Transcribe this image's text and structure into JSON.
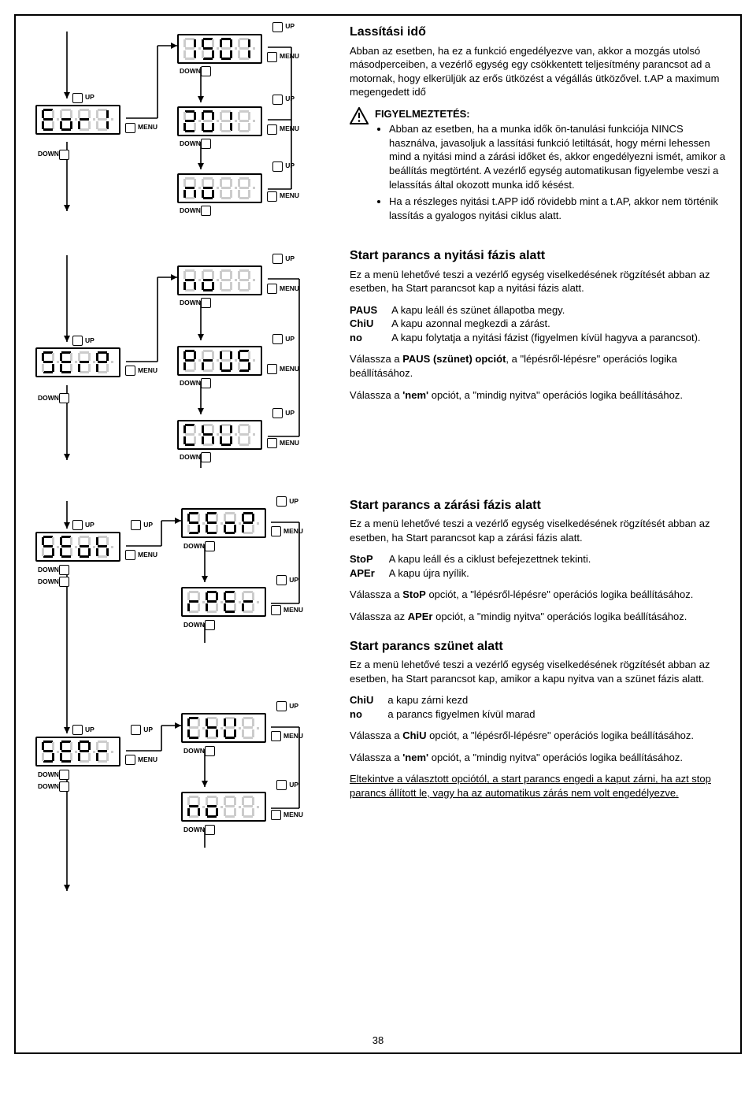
{
  "labels": {
    "up": "UP",
    "down": "DOWN",
    "menu": "MENU"
  },
  "section1": {
    "display_main": "E.o.R.1",
    "displays_right_top": "1.5.0.1",
    "displays_right_mid": "2.0.1",
    "displays_right_bot": "n.o",
    "title": "Lassítási idő",
    "para1": "Abban az esetben, ha ez a funkció engedélyezve van, akkor a mozgás utolsó másodperceiben, a vezérlő egység egy csökkentett teljesítmény parancsot ad a motornak, hogy elkerüljük az erős ütközést a végállás ütközővel. t.AP a maximum megengedett idő",
    "warn_title": "FIGYELMEZTETÉS:",
    "warn_items": [
      "Abban az esetben, ha a munka idők ön-tanulási funkciója NINCS használva, javasoljuk a lassítási funkció letiltását, hogy mérni lehessen mind a nyitási mind a zárási időket és, akkor engedélyezni ismét, amikor a beállítás megtörtént. A vezérlő egység automatikusan figyelembe veszi a lelassítás által okozott munka idő késést.",
      "Ha a részleges nyitási t.APP idő rövidebb mint a t.AP, akkor nem történik lassítás a gyalogos nyitási ciklus alatt."
    ]
  },
  "section2": {
    "display_main": "S.E.R.P",
    "displays_right_top": "n.o",
    "displays_right_mid": "P.R.U.S",
    "displays_right_bot": "C.h.U",
    "title": "Start parancs a nyitási fázis alatt",
    "intro": "Ez a menü lehetővé teszi a vezérlő egység viselkedésének rögzítését abban az esetben, ha Start parancsot kap a nyitási fázis alatt.",
    "defs": [
      {
        "k": "PAUS",
        "v": "A kapu leáll és szünet állapotba megy."
      },
      {
        "k": "ChiU",
        "v": "A kapu azonnal megkezdi a zárást."
      },
      {
        "k": "no",
        "v": "A kapu folytatja a nyitási fázist (figyelmen kívül hagyva a parancsot)."
      }
    ],
    "note1": "Válassza a <b>PAUS (szünet) opciót</b>, a \"lépésről-lépésre\" operációs logika beállításához.",
    "note2": "Válassza a <b>'nem'</b> opciót, a \"mindig nyitva\" operációs logika beállításához."
  },
  "section3": {
    "title": "Start parancs a zárási fázis alatt",
    "display_left_top": "S.E.o.h",
    "display_right_top": "S.E.o.P",
    "display_right_mid": "R.P.E.r",
    "intro": "Ez a menü lehetővé teszi a vezérlő egység viselkedésének rögzítését abban az esetben, ha Start parancsot kap a zárási fázis alatt.",
    "defs": [
      {
        "k": "StoP",
        "v": "A kapu leáll és a ciklust befejezettnek tekinti."
      },
      {
        "k": "APEr",
        "v": "A kapu újra nyílik."
      }
    ],
    "note1": "Válassza a <b>StoP</b> opciót, a \"lépésről-lépésre\" operációs logika beállításához.",
    "note2": "Válassza az <b>APEr</b> opciót, a \"mindig nyitva\" operációs logika beállításához."
  },
  "section4": {
    "title": "Start parancs szünet alatt",
    "display_left": "S.E.P.R",
    "display_right_top": "C.h.U",
    "display_right_mid": "n.o",
    "intro": "Ez a menü lehetővé teszi a vezérlő egység viselkedésének rögzítését abban az esetben, ha Start parancsot kap, amikor a kapu nyitva van a szünet fázis alatt.",
    "defs": [
      {
        "k": "ChiU",
        "v": "a kapu zárni kezd"
      },
      {
        "k": "no",
        "v": "a parancs figyelmen kívül marad"
      }
    ],
    "note1": "Válassza a <b>ChiU</b> opciót, a \"lépésről-lépésre\" operációs logika beállításához.",
    "note2": "Válassza a <b>'nem'</b> opciót, a \"mindig nyitva\" operációs logika beállításához.",
    "footer": "Eltekintve a választott opciótól, a start parancs engedi a kaput zárni, ha azt stop parancs állított le, vagy ha az automatikus zárás nem volt engedélyezve."
  },
  "page_number": "38"
}
